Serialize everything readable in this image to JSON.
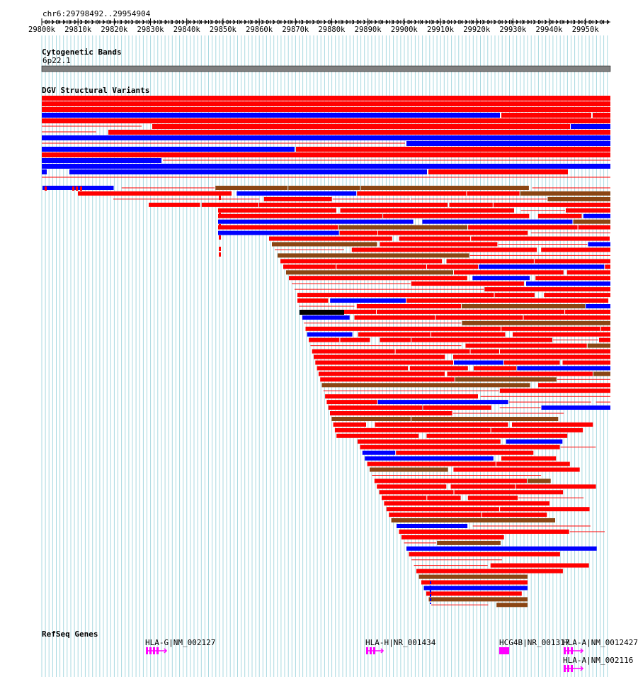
{
  "location": "chr6:29798492..29954904",
  "ruler": {
    "ticks": [
      "29800k",
      "29810k",
      "29820k",
      "29830k",
      "29840k",
      "29850k",
      "29860k",
      "29870k",
      "29880k",
      "29890k",
      "29900k",
      "29910k",
      "29920k",
      "29930k",
      "29940k",
      "29950k"
    ]
  },
  "cytoband": {
    "title": "Cytogenetic Bands",
    "band": "6p22.1"
  },
  "dgv": {
    "title": "DGV Structural Variants"
  },
  "refseq": {
    "title": "RefSeq Genes",
    "genes": [
      {
        "label": "HLA-G|NM_002127"
      },
      {
        "label": "HLA-H|NR_001434"
      },
      {
        "label": "HCG4B|NR_001317"
      },
      {
        "label": "HLA-A|NM_0012427"
      },
      {
        "label": "HLA-A|NM_002116"
      }
    ]
  },
  "colors": {
    "gain": "#ff0000",
    "loss": "#0000ff",
    "complex": "#8b4513",
    "other": "#000000",
    "gene": "#ff00ff",
    "grid": "#a8d8e0",
    "band": "#808080"
  }
}
